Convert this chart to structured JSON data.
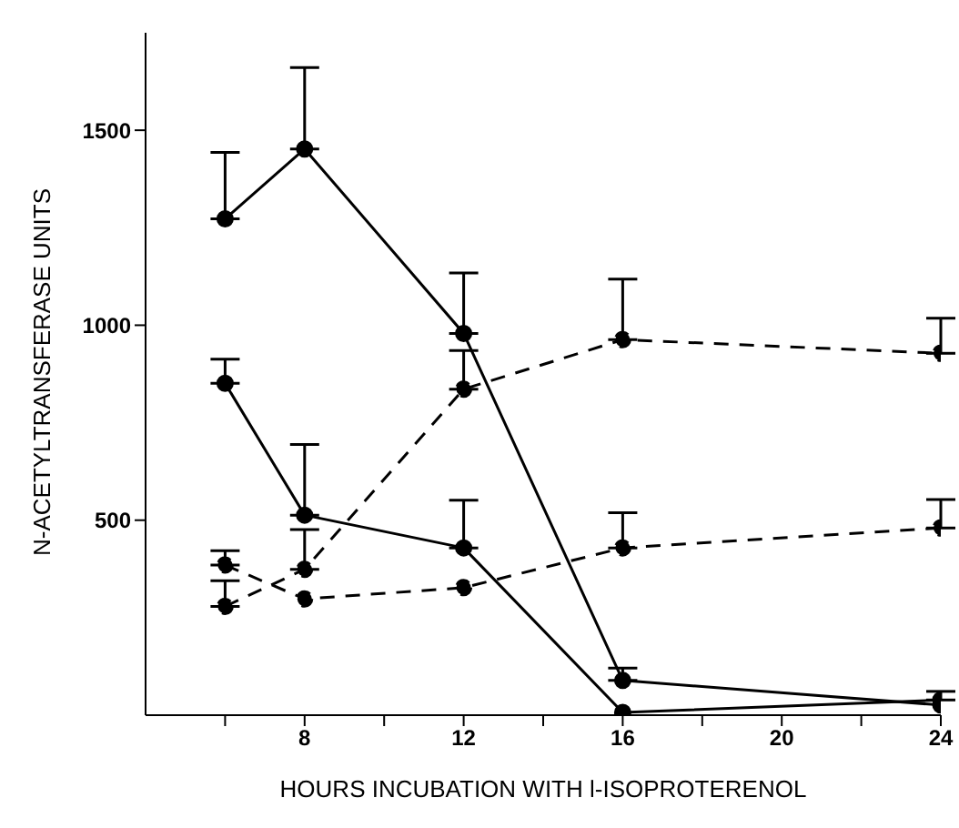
{
  "chart_data": {
    "type": "line",
    "xlabel": "HOURS INCUBATION WITH l-ISOPROTERENOL",
    "ylabel": "N-ACETYLTRANSFERASE UNITS",
    "x": [
      6,
      8,
      12,
      16,
      24
    ],
    "series": [
      {
        "color": "#000000",
        "line_style": "solid",
        "values": [
          1273,
          1452,
          979,
          89,
          26
        ],
        "errors": [
          [
            1273,
            1443
          ],
          [
            1452,
            1661
          ],
          [
            979,
            1134
          ],
          [
            89,
            121
          ],
          null
        ]
      },
      {
        "color": "#000000",
        "line_style": "solid",
        "values": [
          851,
          513,
          429,
          7,
          39
        ],
        "errors": [
          [
            851,
            913
          ],
          [
            513,
            694
          ],
          [
            429,
            551
          ],
          null,
          [
            39,
            61
          ]
        ]
      },
      {
        "color": "#000000",
        "line_style": "dashed",
        "values": [
          279,
          374,
          836,
          963,
          928
        ],
        "errors": [
          [
            279,
            345
          ],
          [
            374,
            476
          ],
          [
            836,
            935
          ],
          [
            963,
            1118
          ],
          [
            928,
            1018
          ]
        ]
      },
      {
        "color": "#000000",
        "line_style": "dashed",
        "values": [
          385,
          298,
          327,
          429,
          480
        ],
        "errors": [
          [
            385,
            422
          ],
          null,
          null,
          [
            429,
            519
          ],
          [
            480,
            553
          ]
        ]
      }
    ],
    "xlim": [
      4,
      24
    ],
    "xticks": [
      {
        "value": 6,
        "label": null
      },
      8,
      {
        "value": 10,
        "label": null
      },
      12,
      {
        "value": 14,
        "label": null
      },
      16,
      {
        "value": 18,
        "label": null
      },
      20,
      {
        "value": 22,
        "label": null
      },
      24
    ],
    "ylim": [
      0,
      1750
    ],
    "yticks": [
      500,
      1000,
      1500
    ],
    "marker": "circle",
    "grid": false,
    "legend": false
  }
}
